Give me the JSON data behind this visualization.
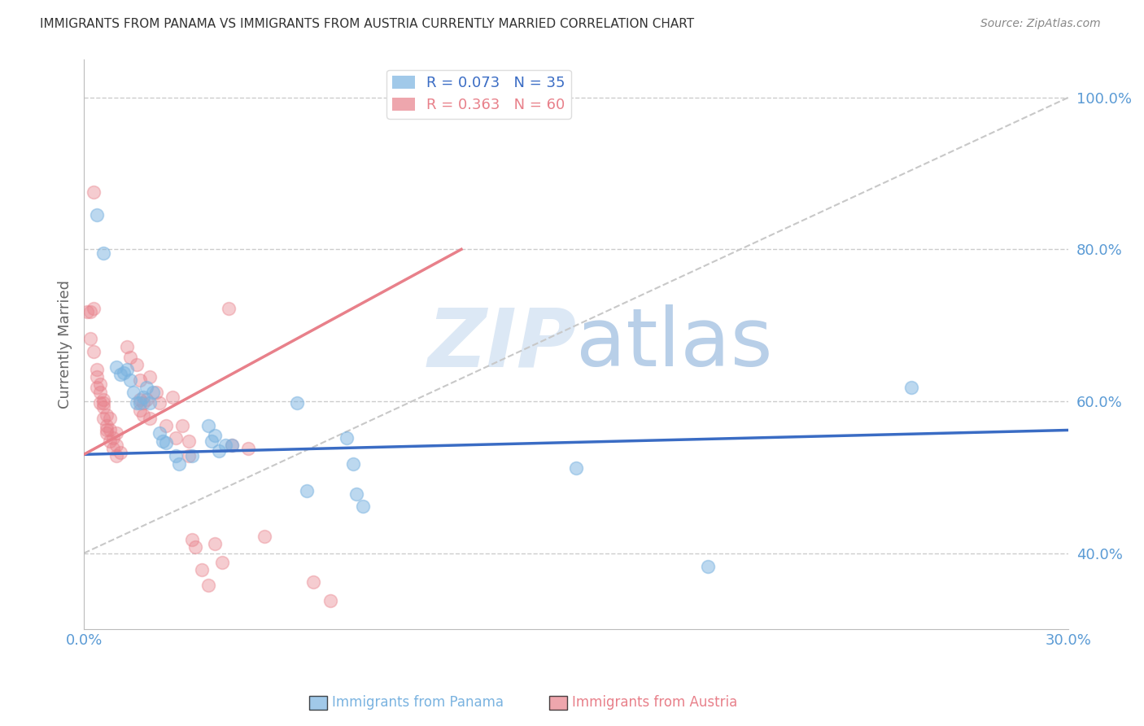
{
  "title": "IMMIGRANTS FROM PANAMA VS IMMIGRANTS FROM AUSTRIA CURRENTLY MARRIED CORRELATION CHART",
  "source": "Source: ZipAtlas.com",
  "ylabel": "Currently Married",
  "xlim": [
    0.0,
    0.3
  ],
  "ylim": [
    0.3,
    1.05
  ],
  "right_yticks": [
    0.4,
    0.6,
    0.8,
    1.0
  ],
  "right_yticklabels": [
    "40.0%",
    "60.0%",
    "80.0%",
    "100.0%"
  ],
  "xticks": [
    0.0,
    0.05,
    0.1,
    0.15,
    0.2,
    0.25,
    0.3
  ],
  "xticklabels": [
    "0.0%",
    "",
    "",
    "",
    "",
    "",
    "30.0%"
  ],
  "panama_scatter": [
    [
      0.004,
      0.845
    ],
    [
      0.006,
      0.795
    ],
    [
      0.01,
      0.645
    ],
    [
      0.011,
      0.635
    ],
    [
      0.012,
      0.638
    ],
    [
      0.013,
      0.642
    ],
    [
      0.014,
      0.628
    ],
    [
      0.015,
      0.612
    ],
    [
      0.016,
      0.598
    ],
    [
      0.017,
      0.598
    ],
    [
      0.018,
      0.605
    ],
    [
      0.019,
      0.618
    ],
    [
      0.02,
      0.598
    ],
    [
      0.021,
      0.612
    ],
    [
      0.023,
      0.558
    ],
    [
      0.024,
      0.548
    ],
    [
      0.025,
      0.545
    ],
    [
      0.028,
      0.528
    ],
    [
      0.029,
      0.518
    ],
    [
      0.033,
      0.528
    ],
    [
      0.038,
      0.568
    ],
    [
      0.039,
      0.548
    ],
    [
      0.04,
      0.555
    ],
    [
      0.041,
      0.535
    ],
    [
      0.043,
      0.542
    ],
    [
      0.045,
      0.542
    ],
    [
      0.065,
      0.598
    ],
    [
      0.068,
      0.482
    ],
    [
      0.08,
      0.552
    ],
    [
      0.082,
      0.518
    ],
    [
      0.083,
      0.478
    ],
    [
      0.085,
      0.462
    ],
    [
      0.15,
      0.512
    ],
    [
      0.19,
      0.382
    ],
    [
      0.252,
      0.618
    ]
  ],
  "austria_scatter": [
    [
      0.001,
      0.718
    ],
    [
      0.002,
      0.718
    ],
    [
      0.002,
      0.682
    ],
    [
      0.003,
      0.875
    ],
    [
      0.003,
      0.722
    ],
    [
      0.003,
      0.665
    ],
    [
      0.004,
      0.642
    ],
    [
      0.004,
      0.632
    ],
    [
      0.004,
      0.618
    ],
    [
      0.005,
      0.622
    ],
    [
      0.005,
      0.612
    ],
    [
      0.005,
      0.598
    ],
    [
      0.006,
      0.602
    ],
    [
      0.006,
      0.598
    ],
    [
      0.006,
      0.592
    ],
    [
      0.006,
      0.578
    ],
    [
      0.007,
      0.582
    ],
    [
      0.007,
      0.568
    ],
    [
      0.007,
      0.562
    ],
    [
      0.007,
      0.558
    ],
    [
      0.008,
      0.578
    ],
    [
      0.008,
      0.562
    ],
    [
      0.008,
      0.548
    ],
    [
      0.009,
      0.552
    ],
    [
      0.009,
      0.538
    ],
    [
      0.01,
      0.558
    ],
    [
      0.01,
      0.542
    ],
    [
      0.01,
      0.528
    ],
    [
      0.011,
      0.532
    ],
    [
      0.013,
      0.672
    ],
    [
      0.014,
      0.658
    ],
    [
      0.016,
      0.648
    ],
    [
      0.017,
      0.628
    ],
    [
      0.017,
      0.602
    ],
    [
      0.017,
      0.588
    ],
    [
      0.018,
      0.598
    ],
    [
      0.018,
      0.582
    ],
    [
      0.019,
      0.602
    ],
    [
      0.02,
      0.632
    ],
    [
      0.02,
      0.578
    ],
    [
      0.022,
      0.612
    ],
    [
      0.023,
      0.598
    ],
    [
      0.025,
      0.568
    ],
    [
      0.027,
      0.605
    ],
    [
      0.028,
      0.552
    ],
    [
      0.03,
      0.568
    ],
    [
      0.032,
      0.548
    ],
    [
      0.032,
      0.528
    ],
    [
      0.033,
      0.418
    ],
    [
      0.034,
      0.408
    ],
    [
      0.036,
      0.378
    ],
    [
      0.038,
      0.358
    ],
    [
      0.04,
      0.412
    ],
    [
      0.042,
      0.388
    ],
    [
      0.044,
      0.722
    ],
    [
      0.045,
      0.542
    ],
    [
      0.05,
      0.538
    ],
    [
      0.055,
      0.422
    ],
    [
      0.07,
      0.362
    ],
    [
      0.075,
      0.338
    ]
  ],
  "panama_line_x": [
    0.0,
    0.3
  ],
  "panama_line_y": [
    0.53,
    0.562
  ],
  "austria_line_x": [
    0.0,
    0.115
  ],
  "austria_line_y": [
    0.53,
    0.8
  ],
  "diagonal_line_x": [
    0.0,
    0.3
  ],
  "diagonal_line_y": [
    0.4,
    1.0
  ],
  "panama_color": "#7ab3e0",
  "austria_color": "#e8808a",
  "panama_line_color": "#3a6cc4",
  "austria_line_color": "#e8808a",
  "diagonal_color": "#c8c8c8",
  "background_color": "#ffffff",
  "title_color": "#333333",
  "axis_label_color": "#666666",
  "right_axis_color": "#5b9bd5",
  "watermark_color": "#dce8f5",
  "legend_entries": [
    {
      "label": "R = 0.073   N = 35",
      "color": "#7ab3e0"
    },
    {
      "label": "R = 0.363   N = 60",
      "color": "#e8808a"
    }
  ]
}
